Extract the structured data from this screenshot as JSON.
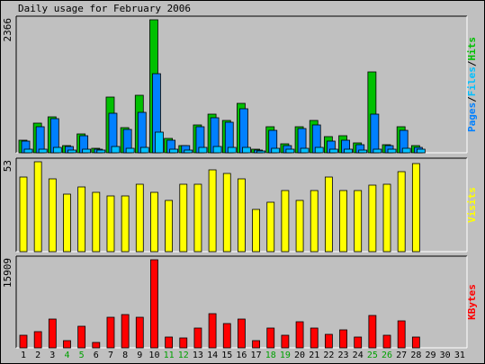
{
  "chart_data": [
    {
      "panel": "hits_files_pages",
      "type": "bar",
      "title": "Daily usage for February 2006",
      "max_label": "2366",
      "ylabel_parts": [
        {
          "text": "Pages",
          "color": "#0080ff"
        },
        {
          "text": "/",
          "color": "#000000"
        },
        {
          "text": "Files",
          "color": "#00c0ff"
        },
        {
          "text": "/",
          "color": "#000000"
        },
        {
          "text": "Hits",
          "color": "#00c000"
        }
      ],
      "ylim": [
        0,
        2366
      ],
      "categories": [
        "1",
        "2",
        "3",
        "4",
        "5",
        "6",
        "7",
        "8",
        "9",
        "10",
        "11",
        "12",
        "13",
        "14",
        "15",
        "16",
        "17",
        "18",
        "19",
        "20",
        "21",
        "22",
        "23",
        "24",
        "25",
        "26",
        "27",
        "28",
        "29",
        "30",
        "31"
      ],
      "series": [
        {
          "name": "Hits",
          "color": "#00c000",
          "values": [
            230,
            520,
            640,
            120,
            340,
            80,
            990,
            440,
            1020,
            2366,
            250,
            130,
            490,
            680,
            570,
            880,
            60,
            470,
            160,
            470,
            580,
            290,
            300,
            180,
            1440,
            150,
            460,
            120,
            null,
            null,
            null
          ]
        },
        {
          "name": "Pages",
          "color": "#0080ff",
          "values": [
            200,
            470,
            610,
            110,
            300,
            70,
            700,
            410,
            720,
            1400,
            230,
            120,
            460,
            630,
            550,
            790,
            50,
            400,
            120,
            430,
            490,
            210,
            230,
            150,
            680,
            120,
            400,
            100,
            null,
            null,
            null
          ]
        },
        {
          "name": "Files",
          "color": "#00c0ff",
          "values": [
            60,
            70,
            90,
            40,
            60,
            40,
            110,
            80,
            100,
            370,
            60,
            50,
            90,
            110,
            100,
            100,
            30,
            80,
            60,
            80,
            90,
            60,
            60,
            50,
            70,
            60,
            80,
            70,
            null,
            null,
            null
          ]
        }
      ],
      "weekend_days": [
        4,
        5,
        11,
        12,
        18,
        19,
        25,
        26
      ]
    },
    {
      "panel": "visits",
      "type": "bar",
      "max_label": "53",
      "ylabel": "Visits",
      "ylabel_color": "#ffff00",
      "ylim": [
        0,
        53
      ],
      "categories": [
        "1",
        "2",
        "3",
        "4",
        "5",
        "6",
        "7",
        "8",
        "9",
        "10",
        "11",
        "12",
        "13",
        "14",
        "15",
        "16",
        "17",
        "18",
        "19",
        "20",
        "21",
        "22",
        "23",
        "24",
        "25",
        "26",
        "27",
        "28",
        "29",
        "30",
        "31"
      ],
      "series": [
        {
          "name": "Visits",
          "color": "#ffff00",
          "values": [
            44,
            53,
            43,
            34,
            38,
            35,
            33,
            33,
            40,
            35,
            30,
            40,
            40,
            48,
            46,
            43,
            25,
            29,
            36,
            30,
            36,
            44,
            36,
            36,
            39,
            40,
            47,
            52,
            null,
            null,
            null
          ]
        }
      ]
    },
    {
      "panel": "kbytes",
      "type": "bar",
      "max_label": "15909",
      "ylabel": "KBytes",
      "ylabel_color": "#ff0000",
      "ylim": [
        0,
        15909
      ],
      "categories": [
        "1",
        "2",
        "3",
        "4",
        "5",
        "6",
        "7",
        "8",
        "9",
        "10",
        "11",
        "12",
        "13",
        "14",
        "15",
        "16",
        "17",
        "18",
        "19",
        "20",
        "21",
        "22",
        "23",
        "24",
        "25",
        "26",
        "27",
        "28",
        "29",
        "30",
        "31"
      ],
      "series": [
        {
          "name": "KBytes",
          "color": "#ff0000",
          "values": [
            2300,
            3000,
            5200,
            1300,
            3900,
            900,
            5500,
            6000,
            5600,
            15909,
            1900,
            1800,
            3600,
            6100,
            4400,
            5200,
            1300,
            3500,
            2300,
            4700,
            3600,
            2400,
            3300,
            1900,
            5900,
            2300,
            4800,
            1900,
            null,
            null,
            null
          ]
        }
      ]
    }
  ]
}
